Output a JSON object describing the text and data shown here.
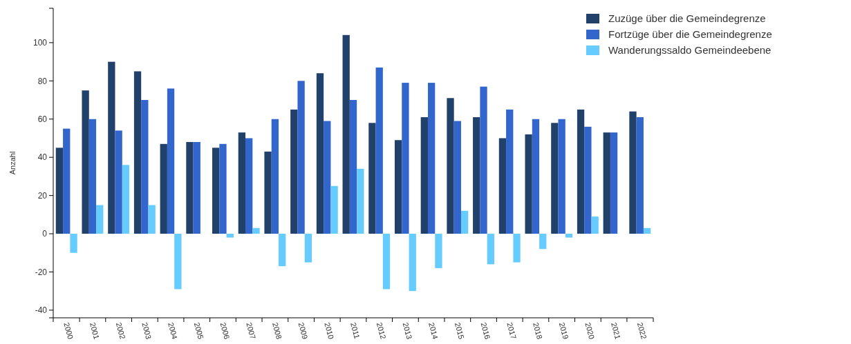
{
  "chart_data": {
    "type": "bar",
    "ylabel": "Anzahl",
    "categories": [
      "2000",
      "2001",
      "2002",
      "2003",
      "2004",
      "2005",
      "2006",
      "2007",
      "2008",
      "2009",
      "2010",
      "2011",
      "2012",
      "2013",
      "2014",
      "2015",
      "2016",
      "2017",
      "2018",
      "2019",
      "2020",
      "2021",
      "2022"
    ],
    "series": [
      {
        "name": "Zuzüge über die Gemeindegrenze",
        "color": "#22416a",
        "values": [
          45,
          75,
          90,
          85,
          47,
          48,
          45,
          53,
          43,
          65,
          84,
          104,
          58,
          49,
          61,
          71,
          61,
          50,
          52,
          58,
          65,
          53,
          64
        ]
      },
      {
        "name": "Fortzüge über die Gemeindegrenze",
        "color": "#3366cc",
        "values": [
          55,
          60,
          54,
          70,
          76,
          48,
          47,
          50,
          60,
          80,
          59,
          70,
          87,
          79,
          79,
          59,
          77,
          65,
          60,
          60,
          56,
          53,
          61
        ]
      },
      {
        "name": "Wanderungssaldo Gemeindeebene",
        "color": "#66ccff",
        "values": [
          -10,
          15,
          36,
          15,
          -29,
          0,
          -2,
          3,
          -17,
          -15,
          25,
          34,
          -29,
          -30,
          -18,
          12,
          -16,
          -15,
          -8,
          -2,
          9,
          0,
          3
        ]
      }
    ],
    "ylim": [
      -44,
      118
    ],
    "yticks": [
      -40,
      -20,
      0,
      20,
      40,
      60,
      80,
      100
    ],
    "grid": false,
    "legend": "top right"
  }
}
